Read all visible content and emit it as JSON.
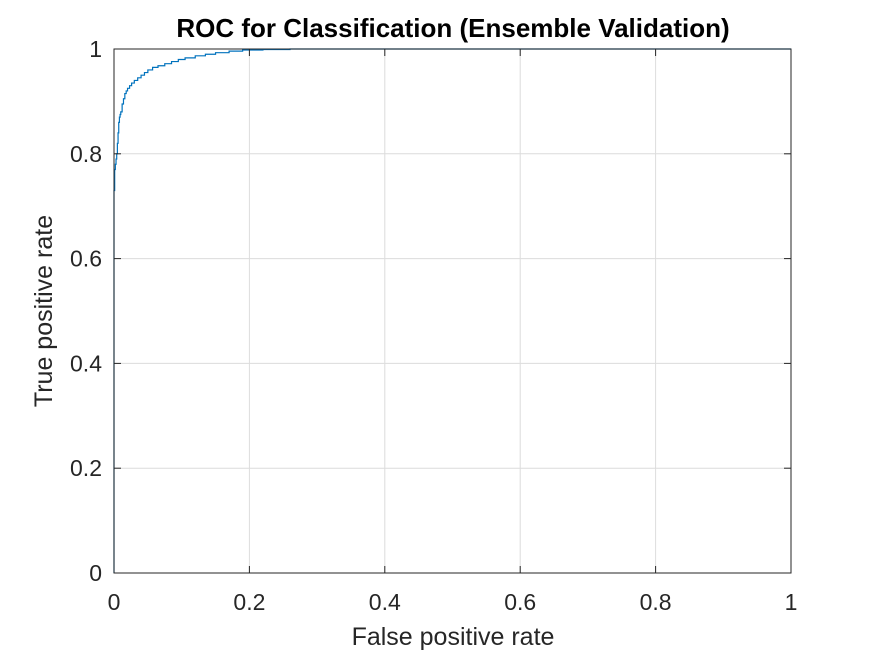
{
  "chart_data": {
    "type": "line",
    "title": "ROC for Classification (Ensemble Validation)",
    "xlabel": "False positive rate",
    "ylabel": "True positive rate",
    "xlim": [
      0,
      1
    ],
    "ylim": [
      0,
      1
    ],
    "xticks": [
      0,
      0.2,
      0.4,
      0.6,
      0.8,
      1
    ],
    "yticks": [
      0,
      0.2,
      0.4,
      0.6,
      0.8,
      1
    ],
    "xtick_labels": [
      "0",
      "0.2",
      "0.4",
      "0.6",
      "0.8",
      "1"
    ],
    "ytick_labels": [
      "0",
      "0.2",
      "0.4",
      "0.6",
      "0.8",
      "1"
    ],
    "grid": true,
    "colors": {
      "series": "#0072bd",
      "axes": "#262626",
      "grid": "#dcdcdc"
    },
    "series": [
      {
        "x": [
          0,
          0,
          0.001,
          0.002,
          0.003,
          0.004,
          0.005,
          0.006,
          0.007,
          0.008,
          0.009,
          0.01,
          0.012,
          0.014,
          0.016,
          0.018,
          0.02,
          0.023,
          0.026,
          0.03,
          0.035,
          0.04,
          0.045,
          0.05,
          0.057,
          0.065,
          0.075,
          0.085,
          0.095,
          0.105,
          0.12,
          0.135,
          0.15,
          0.17,
          0.19,
          0.22,
          0.26,
          0.3,
          0.4,
          0.6,
          0.8,
          1.0
        ],
        "y": [
          0,
          0.73,
          0.77,
          0.78,
          0.79,
          0.8,
          0.82,
          0.84,
          0.86,
          0.87,
          0.875,
          0.88,
          0.895,
          0.905,
          0.915,
          0.92,
          0.925,
          0.93,
          0.935,
          0.94,
          0.945,
          0.95,
          0.955,
          0.96,
          0.965,
          0.968,
          0.972,
          0.976,
          0.98,
          0.983,
          0.987,
          0.99,
          0.993,
          0.996,
          0.998,
          0.999,
          1.0,
          1.0,
          1.0,
          1.0,
          1.0,
          1.0
        ]
      }
    ]
  }
}
